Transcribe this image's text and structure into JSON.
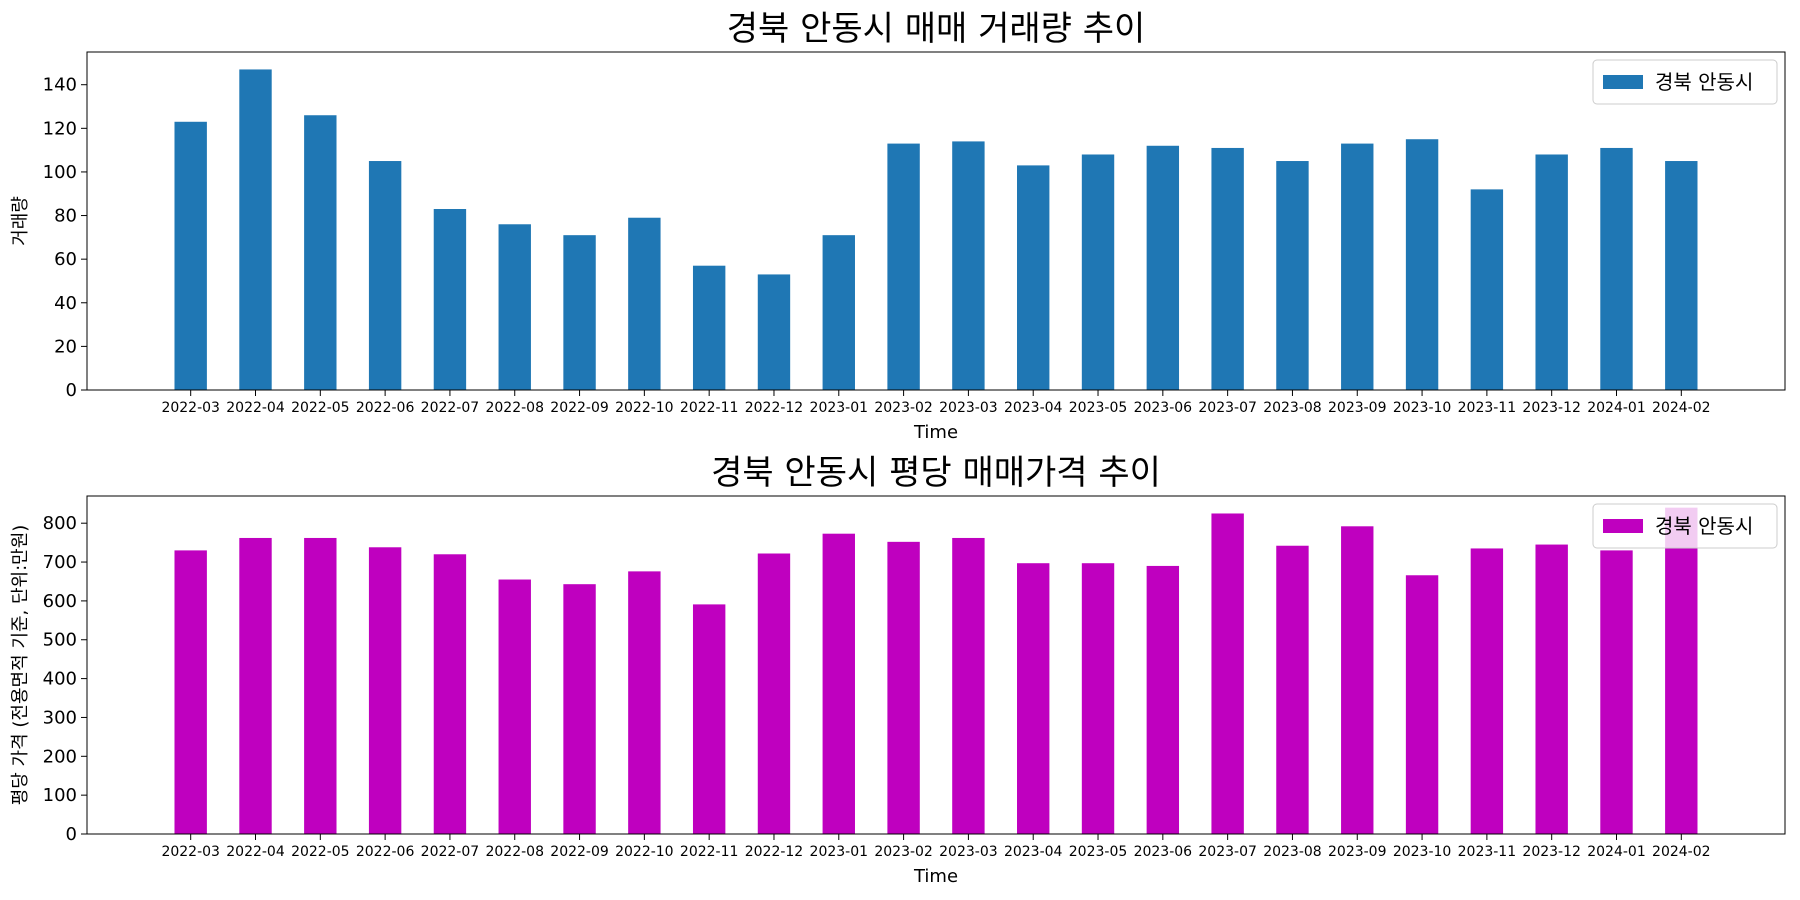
{
  "chart_data": [
    {
      "type": "bar",
      "title": "경북 안동시 매매 거래량 추이",
      "xlabel": "Time",
      "ylabel": "거래량",
      "ylim": [
        0,
        155
      ],
      "yticks": [
        0,
        20,
        40,
        60,
        80,
        100,
        120,
        140
      ],
      "grid": false,
      "legend_position": "upper right",
      "color": "#1f77b4",
      "categories": [
        "2022-03",
        "2022-04",
        "2022-05",
        "2022-06",
        "2022-07",
        "2022-08",
        "2022-09",
        "2022-10",
        "2022-11",
        "2022-12",
        "2023-01",
        "2023-02",
        "2023-03",
        "2023-04",
        "2023-05",
        "2023-06",
        "2023-07",
        "2023-08",
        "2023-09",
        "2023-10",
        "2023-11",
        "2023-12",
        "2024-01",
        "2024-02"
      ],
      "series": [
        {
          "name": "경북 안동시",
          "values": [
            123,
            147,
            126,
            105,
            83,
            76,
            71,
            79,
            57,
            53,
            71,
            113,
            114,
            103,
            108,
            112,
            111,
            105,
            113,
            115,
            92,
            108,
            111,
            105
          ]
        }
      ]
    },
    {
      "type": "bar",
      "title": "경북 안동시 평당 매매가격 추이",
      "xlabel": "Time",
      "ylabel": "평당 가격 (전용면적 기준, 단위:만원)",
      "ylim": [
        0,
        870
      ],
      "yticks": [
        0,
        100,
        200,
        300,
        400,
        500,
        600,
        700,
        800
      ],
      "grid": false,
      "legend_position": "upper right",
      "color": "#bf00bf",
      "categories": [
        "2022-03",
        "2022-04",
        "2022-05",
        "2022-06",
        "2022-07",
        "2022-08",
        "2022-09",
        "2022-10",
        "2022-11",
        "2022-12",
        "2023-01",
        "2023-02",
        "2023-03",
        "2023-04",
        "2023-05",
        "2023-06",
        "2023-07",
        "2023-08",
        "2023-09",
        "2023-10",
        "2023-11",
        "2023-12",
        "2024-01",
        "2024-02"
      ],
      "series": [
        {
          "name": "경북 안동시",
          "values": [
            730,
            762,
            762,
            738,
            720,
            655,
            643,
            676,
            591,
            722,
            773,
            752,
            762,
            697,
            697,
            690,
            825,
            742,
            792,
            666,
            735,
            745,
            730,
            840
          ]
        }
      ]
    }
  ]
}
